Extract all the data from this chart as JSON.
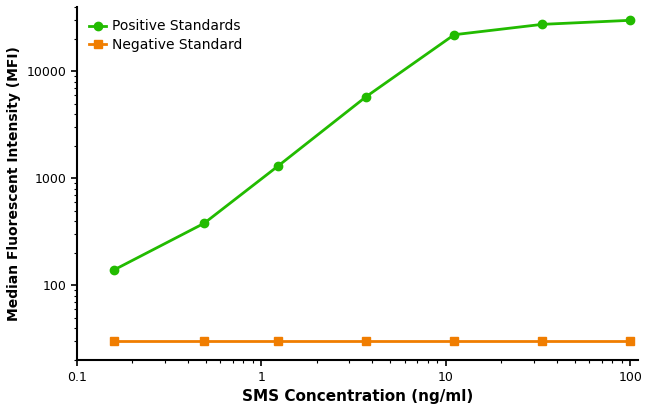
{
  "positive_x": [
    0.16,
    0.49,
    1.23,
    3.7,
    11.1,
    33.3,
    100
  ],
  "positive_y": [
    140,
    380,
    1300,
    5800,
    22000,
    27500,
    30000
  ],
  "negative_x": [
    0.16,
    0.49,
    1.23,
    3.7,
    11.1,
    33.3,
    100
  ],
  "negative_y": [
    30,
    30,
    30,
    30,
    30,
    30,
    30
  ],
  "positive_color": "#22bb00",
  "negative_color": "#f07d00",
  "positive_label": "Positive Standards",
  "negative_label": "Negative Standard",
  "xlabel": "SMS Concentration (ng/ml)",
  "ylabel": "Median Fluorescent Intensity (MFI)",
  "xlim": [
    0.1,
    110
  ],
  "ylim": [
    20,
    40000
  ],
  "background_color": "#ffffff",
  "linewidth": 2.0,
  "markersize": 6
}
